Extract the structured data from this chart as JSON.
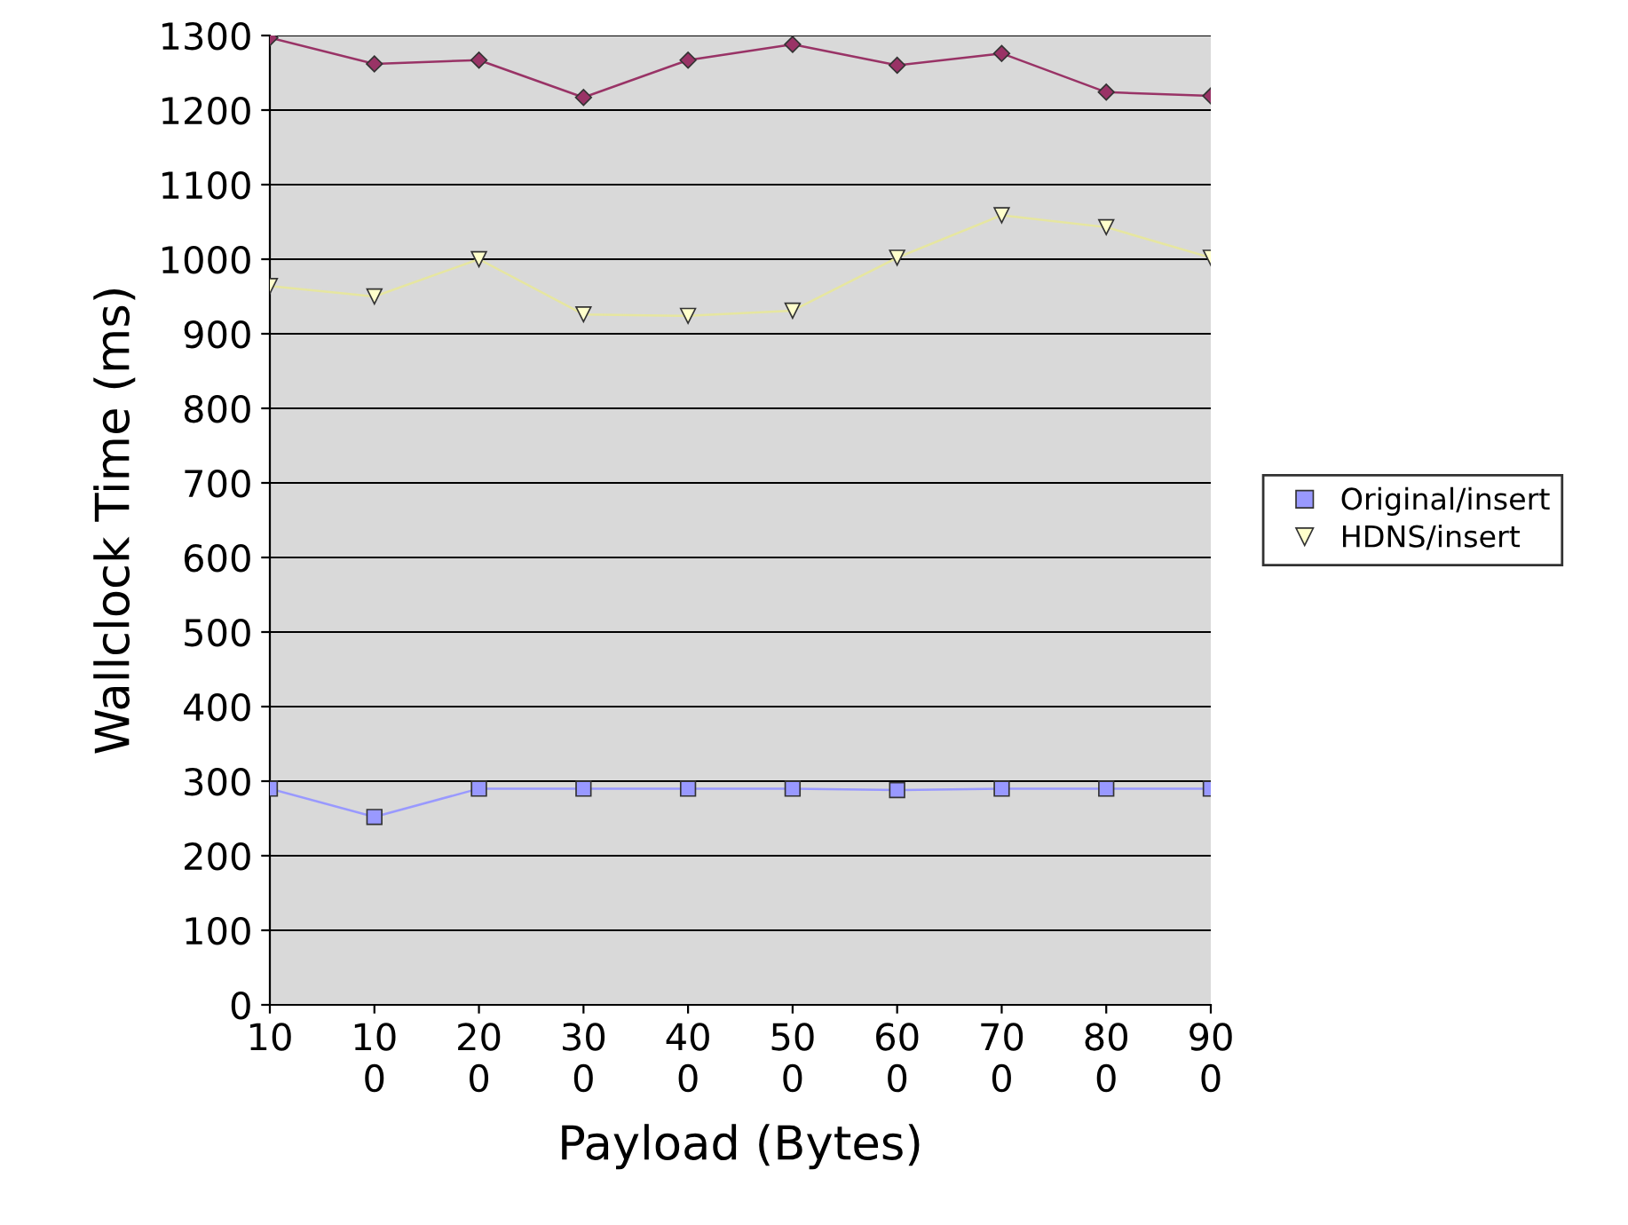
{
  "chart_data": {
    "type": "line",
    "xlabel": "Payload (Bytes)",
    "ylabel": "Wallclock Time (ms)",
    "categories": [
      "10",
      "100",
      "200",
      "300",
      "400",
      "500",
      "600",
      "700",
      "800",
      "900"
    ],
    "ylim": [
      0,
      1300
    ],
    "yticks": [
      0,
      100,
      200,
      300,
      400,
      500,
      600,
      700,
      800,
      900,
      1000,
      1100,
      1200,
      1300
    ],
    "grid": "y",
    "legend": "right",
    "series": [
      {
        "name": "Original/insert",
        "color": "#9999ff",
        "marker": "square",
        "values": [
          290,
          252,
          290,
          290,
          290,
          290,
          288,
          290,
          290,
          290
        ]
      },
      {
        "color": "#993366",
        "marker": "diamond",
        "values": [
          1297,
          1262,
          1267,
          1217,
          1267,
          1288,
          1260,
          1276,
          1224,
          1219
        ]
      },
      {
        "name": "HDNS/insert",
        "color": "#ffffcc",
        "marker": "triangle",
        "values": [
          964,
          950,
          1000,
          926,
          924,
          931,
          1002,
          1059,
          1043,
          1002
        ]
      }
    ]
  }
}
